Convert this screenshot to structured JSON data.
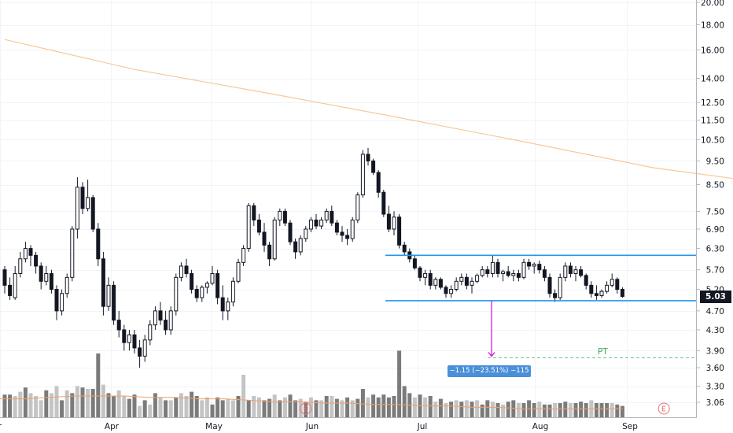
{
  "chart_data": {
    "type": "candlestick",
    "y_scale": "log",
    "ylim": [
      2.88,
      20.8
    ],
    "y_ticks": [
      "20.00",
      "18.00",
      "16.00",
      "14.00",
      "12.50",
      "11.50",
      "10.50",
      "9.50",
      "8.50",
      "7.50",
      "6.90",
      "6.30",
      "5.70",
      "5.20",
      "4.70",
      "4.30",
      "3.90",
      "3.60",
      "3.30",
      "3.06"
    ],
    "x_ticks": [
      "Mar",
      "Apr",
      "May",
      "Jun",
      "Jul",
      "Aug",
      "Sep"
    ],
    "last_price": "5.03",
    "candles": [
      [
        5.7,
        5.8,
        5.1,
        5.3
      ],
      [
        5.3,
        5.5,
        4.95,
        5.05
      ],
      [
        5.0,
        5.8,
        4.95,
        5.6
      ],
      [
        5.6,
        6.2,
        5.5,
        6.0
      ],
      [
        6.0,
        6.5,
        5.9,
        6.3
      ],
      [
        6.3,
        6.4,
        5.8,
        6.1
      ],
      [
        6.1,
        6.2,
        5.6,
        5.8
      ],
      [
        5.8,
        5.9,
        5.2,
        5.4
      ],
      [
        5.4,
        5.8,
        5.3,
        5.6
      ],
      [
        5.6,
        5.7,
        5.1,
        5.2
      ],
      [
        5.2,
        5.3,
        4.5,
        4.7
      ],
      [
        4.7,
        5.2,
        4.6,
        5.1
      ],
      [
        5.1,
        5.6,
        5.0,
        5.5
      ],
      [
        5.5,
        7.0,
        5.4,
        6.9
      ],
      [
        6.9,
        8.8,
        6.6,
        8.4
      ],
      [
        8.4,
        8.6,
        7.4,
        7.6
      ],
      [
        7.6,
        8.7,
        7.5,
        8.0
      ],
      [
        8.0,
        8.1,
        6.8,
        6.9
      ],
      [
        6.9,
        7.1,
        5.8,
        6.0
      ],
      [
        6.0,
        6.2,
        4.6,
        4.8
      ],
      [
        4.8,
        5.5,
        4.7,
        5.3
      ],
      [
        5.3,
        5.4,
        4.4,
        4.5
      ],
      [
        4.5,
        4.7,
        4.15,
        4.3
      ],
      [
        4.3,
        4.4,
        3.9,
        4.05
      ],
      [
        4.05,
        4.3,
        3.9,
        4.2
      ],
      [
        4.2,
        4.3,
        3.85,
        3.95
      ],
      [
        3.95,
        4.1,
        3.6,
        3.8
      ],
      [
        3.8,
        4.2,
        3.7,
        4.1
      ],
      [
        4.1,
        4.5,
        4.0,
        4.4
      ],
      [
        4.4,
        4.8,
        4.3,
        4.7
      ],
      [
        4.7,
        4.9,
        4.4,
        4.5
      ],
      [
        4.5,
        4.7,
        4.2,
        4.3
      ],
      [
        4.3,
        4.8,
        4.2,
        4.7
      ],
      [
        4.7,
        5.6,
        4.6,
        5.5
      ],
      [
        5.5,
        5.9,
        5.4,
        5.8
      ],
      [
        5.8,
        6.0,
        5.5,
        5.6
      ],
      [
        5.6,
        5.7,
        5.1,
        5.2
      ],
      [
        5.2,
        5.3,
        4.9,
        5.0
      ],
      [
        5.0,
        5.3,
        4.9,
        5.25
      ],
      [
        5.25,
        5.4,
        5.1,
        5.35
      ],
      [
        5.35,
        5.8,
        5.3,
        5.6
      ],
      [
        5.6,
        5.7,
        4.85,
        5.0
      ],
      [
        5.0,
        5.3,
        4.5,
        4.7
      ],
      [
        4.7,
        5.0,
        4.5,
        4.9
      ],
      [
        4.9,
        5.5,
        4.8,
        5.4
      ],
      [
        5.4,
        6.0,
        5.35,
        5.9
      ],
      [
        5.9,
        6.4,
        5.8,
        6.3
      ],
      [
        6.3,
        7.8,
        6.2,
        7.7
      ],
      [
        7.7,
        7.8,
        7.0,
        7.2
      ],
      [
        7.2,
        7.4,
        6.7,
        6.8
      ],
      [
        6.8,
        7.1,
        6.2,
        6.4
      ],
      [
        6.4,
        6.5,
        5.8,
        6.0
      ],
      [
        6.0,
        7.3,
        5.95,
        7.2
      ],
      [
        7.2,
        7.6,
        7.0,
        7.5
      ],
      [
        7.5,
        7.6,
        7.0,
        7.1
      ],
      [
        7.1,
        7.2,
        6.4,
        6.5
      ],
      [
        6.5,
        6.6,
        6.0,
        6.2
      ],
      [
        6.2,
        6.7,
        6.1,
        6.6
      ],
      [
        6.6,
        7.0,
        6.5,
        6.9
      ],
      [
        6.9,
        7.3,
        6.8,
        7.2
      ],
      [
        7.2,
        7.4,
        6.9,
        7.0
      ],
      [
        7.0,
        7.3,
        6.9,
        7.2
      ],
      [
        7.2,
        7.6,
        7.1,
        7.5
      ],
      [
        7.5,
        7.7,
        7.0,
        7.1
      ],
      [
        7.1,
        7.2,
        6.7,
        6.8
      ],
      [
        6.8,
        7.0,
        6.5,
        6.7
      ],
      [
        6.7,
        6.9,
        6.4,
        6.6
      ],
      [
        6.6,
        7.3,
        6.5,
        7.2
      ],
      [
        7.2,
        8.2,
        7.1,
        8.1
      ],
      [
        8.1,
        10.0,
        8.0,
        9.8
      ],
      [
        9.8,
        10.1,
        9.3,
        9.5
      ],
      [
        9.5,
        9.6,
        8.9,
        9.0
      ],
      [
        9.0,
        9.1,
        8.0,
        8.2
      ],
      [
        8.2,
        8.3,
        7.3,
        7.4
      ],
      [
        7.4,
        7.7,
        6.8,
        6.9
      ],
      [
        6.9,
        7.5,
        6.7,
        7.3
      ],
      [
        7.3,
        7.4,
        6.3,
        6.4
      ],
      [
        6.4,
        6.5,
        6.1,
        6.2
      ],
      [
        6.2,
        6.3,
        5.9,
        6.0
      ],
      [
        6.0,
        6.1,
        5.7,
        5.75
      ],
      [
        5.75,
        5.8,
        5.4,
        5.5
      ],
      [
        5.5,
        5.7,
        5.3,
        5.6
      ],
      [
        5.6,
        5.7,
        5.2,
        5.3
      ],
      [
        5.3,
        5.5,
        5.2,
        5.45
      ],
      [
        5.45,
        5.5,
        5.2,
        5.25
      ],
      [
        5.25,
        5.3,
        5.0,
        5.1
      ],
      [
        5.1,
        5.3,
        5.0,
        5.2
      ],
      [
        5.2,
        5.5,
        5.15,
        5.4
      ],
      [
        5.4,
        5.6,
        5.3,
        5.5
      ],
      [
        5.5,
        5.6,
        5.2,
        5.3
      ],
      [
        5.3,
        5.5,
        5.1,
        5.4
      ],
      [
        5.4,
        5.6,
        5.35,
        5.55
      ],
      [
        5.55,
        5.8,
        5.5,
        5.7
      ],
      [
        5.7,
        5.8,
        5.5,
        5.6
      ],
      [
        5.6,
        6.1,
        5.5,
        5.9
      ],
      [
        5.9,
        6.0,
        5.5,
        5.6
      ],
      [
        5.6,
        5.7,
        5.4,
        5.65
      ],
      [
        5.65,
        5.8,
        5.5,
        5.55
      ],
      [
        5.55,
        5.7,
        5.4,
        5.6
      ],
      [
        5.6,
        5.7,
        5.4,
        5.5
      ],
      [
        5.5,
        6.0,
        5.45,
        5.9
      ],
      [
        5.9,
        6.0,
        5.7,
        5.8
      ],
      [
        5.8,
        5.9,
        5.6,
        5.85
      ],
      [
        5.85,
        5.95,
        5.6,
        5.7
      ],
      [
        5.7,
        5.8,
        5.4,
        5.5
      ],
      [
        5.5,
        5.6,
        5.0,
        5.1
      ],
      [
        5.1,
        5.2,
        4.9,
        5.0
      ],
      [
        5.0,
        5.6,
        4.95,
        5.5
      ],
      [
        5.5,
        5.9,
        5.4,
        5.8
      ],
      [
        5.8,
        5.9,
        5.5,
        5.6
      ],
      [
        5.6,
        5.8,
        5.4,
        5.7
      ],
      [
        5.7,
        5.8,
        5.5,
        5.55
      ],
      [
        5.55,
        5.6,
        5.2,
        5.3
      ],
      [
        5.3,
        5.4,
        5.0,
        5.1
      ],
      [
        5.1,
        5.3,
        4.95,
        5.05
      ],
      [
        5.05,
        5.2,
        5.0,
        5.15
      ],
      [
        5.15,
        5.4,
        5.1,
        5.3
      ],
      [
        5.3,
        5.6,
        5.25,
        5.45
      ],
      [
        5.45,
        5.5,
        5.1,
        5.2
      ],
      [
        5.2,
        5.25,
        5.0,
        5.03
      ]
    ],
    "volume": [
      [
        0.16,
        "d"
      ],
      [
        0.16,
        "d"
      ],
      [
        0.15,
        "l"
      ],
      [
        0.18,
        "l"
      ],
      [
        0.21,
        "d"
      ],
      [
        0.17,
        "l"
      ],
      [
        0.15,
        "l"
      ],
      [
        0.12,
        "l"
      ],
      [
        0.19,
        "d"
      ],
      [
        0.17,
        "l"
      ],
      [
        0.22,
        "l"
      ],
      [
        0.12,
        "d"
      ],
      [
        0.19,
        "l"
      ],
      [
        0.17,
        "d"
      ],
      [
        0.22,
        "l"
      ],
      [
        0.21,
        "d"
      ],
      [
        0.2,
        "l"
      ],
      [
        0.2,
        "d"
      ],
      [
        0.45,
        "d"
      ],
      [
        0.23,
        "l"
      ],
      [
        0.17,
        "d"
      ],
      [
        0.15,
        "d"
      ],
      [
        0.19,
        "l"
      ],
      [
        0.15,
        "l"
      ],
      [
        0.13,
        "d"
      ],
      [
        0.16,
        "d"
      ],
      [
        0.08,
        "l"
      ],
      [
        0.12,
        "d"
      ],
      [
        0.09,
        "l"
      ],
      [
        0.17,
        "d"
      ],
      [
        0.14,
        "l"
      ],
      [
        0.12,
        "d"
      ],
      [
        0.12,
        "l"
      ],
      [
        0.14,
        "d"
      ],
      [
        0.17,
        "l"
      ],
      [
        0.15,
        "l"
      ],
      [
        0.18,
        "d"
      ],
      [
        0.15,
        "d"
      ],
      [
        0.12,
        "l"
      ],
      [
        0.14,
        "l"
      ],
      [
        0.09,
        "d"
      ],
      [
        0.14,
        "d"
      ],
      [
        0.12,
        "d"
      ],
      [
        0.13,
        "l"
      ],
      [
        0.12,
        "l"
      ],
      [
        0.15,
        "d"
      ],
      [
        0.3,
        "l"
      ],
      [
        0.12,
        "d"
      ],
      [
        0.15,
        "l"
      ],
      [
        0.14,
        "l"
      ],
      [
        0.12,
        "d"
      ],
      [
        0.13,
        "d"
      ],
      [
        0.16,
        "l"
      ],
      [
        0.12,
        "d"
      ],
      [
        0.14,
        "l"
      ],
      [
        0.16,
        "d"
      ],
      [
        0.12,
        "d"
      ],
      [
        0.13,
        "l"
      ],
      [
        0.11,
        "d"
      ],
      [
        0.14,
        "l"
      ],
      [
        0.12,
        "d"
      ],
      [
        0.12,
        "l"
      ],
      [
        0.15,
        "d"
      ],
      [
        0.15,
        "l"
      ],
      [
        0.13,
        "d"
      ],
      [
        0.12,
        "l"
      ],
      [
        0.14,
        "d"
      ],
      [
        0.12,
        "l"
      ],
      [
        0.13,
        "d"
      ],
      [
        0.2,
        "d"
      ],
      [
        0.14,
        "l"
      ],
      [
        0.16,
        "d"
      ],
      [
        0.14,
        "d"
      ],
      [
        0.16,
        "d"
      ],
      [
        0.14,
        "d"
      ],
      [
        0.15,
        "d"
      ],
      [
        0.47,
        "d"
      ],
      [
        0.22,
        "d"
      ],
      [
        0.17,
        "d"
      ],
      [
        0.14,
        "l"
      ],
      [
        0.16,
        "d"
      ],
      [
        0.14,
        "l"
      ],
      [
        0.15,
        "d"
      ],
      [
        0.11,
        "l"
      ],
      [
        0.13,
        "d"
      ],
      [
        0.1,
        "l"
      ],
      [
        0.11,
        "d"
      ],
      [
        0.12,
        "l"
      ],
      [
        0.11,
        "d"
      ],
      [
        0.12,
        "l"
      ],
      [
        0.11,
        "d"
      ],
      [
        0.12,
        "l"
      ],
      [
        0.09,
        "d"
      ],
      [
        0.12,
        "d"
      ],
      [
        0.11,
        "l"
      ],
      [
        0.1,
        "d"
      ],
      [
        0.09,
        "l"
      ],
      [
        0.11,
        "d"
      ],
      [
        0.12,
        "d"
      ],
      [
        0.1,
        "l"
      ],
      [
        0.1,
        "d"
      ],
      [
        0.12,
        "d"
      ],
      [
        0.1,
        "d"
      ],
      [
        0.11,
        "l"
      ],
      [
        0.09,
        "d"
      ],
      [
        0.09,
        "d"
      ],
      [
        0.1,
        "l"
      ],
      [
        0.1,
        "d"
      ],
      [
        0.11,
        "d"
      ],
      [
        0.1,
        "l"
      ],
      [
        0.1,
        "d"
      ],
      [
        0.11,
        "d"
      ],
      [
        0.1,
        "d"
      ],
      [
        0.12,
        "l"
      ],
      [
        0.1,
        "d"
      ],
      [
        0.1,
        "d"
      ],
      [
        0.1,
        "d"
      ],
      [
        0.1,
        "l"
      ],
      [
        0.09,
        "d"
      ],
      [
        0.08,
        "d"
      ]
    ],
    "volume_ma": [
      0.13,
      0.13,
      0.14,
      0.15,
      0.15,
      0.15,
      0.14,
      0.14,
      0.13,
      0.13,
      0.12,
      0.11,
      0.11,
      0.1,
      0.1,
      0.09,
      0.09,
      0.08,
      0.08,
      0.07,
      0.07,
      0.06,
      0.06,
      0.06,
      0.06,
      0.06
    ],
    "ma_line": [
      [
        0,
        16.8
      ],
      [
        25,
        14.6
      ],
      [
        50,
        13.1
      ],
      [
        75,
        11.7
      ],
      [
        100,
        10.4
      ],
      [
        125,
        9.2
      ],
      [
        142,
        8.7
      ]
    ],
    "resistance": 6.1,
    "support": 4.93,
    "target": 3.77,
    "measure_arrow": {
      "from": 4.93,
      "to": 3.77
    },
    "measure_label": "−1.15 (−23.51%) −115",
    "target_label": "PT",
    "earnings_markers": [
      58,
      127
    ]
  }
}
